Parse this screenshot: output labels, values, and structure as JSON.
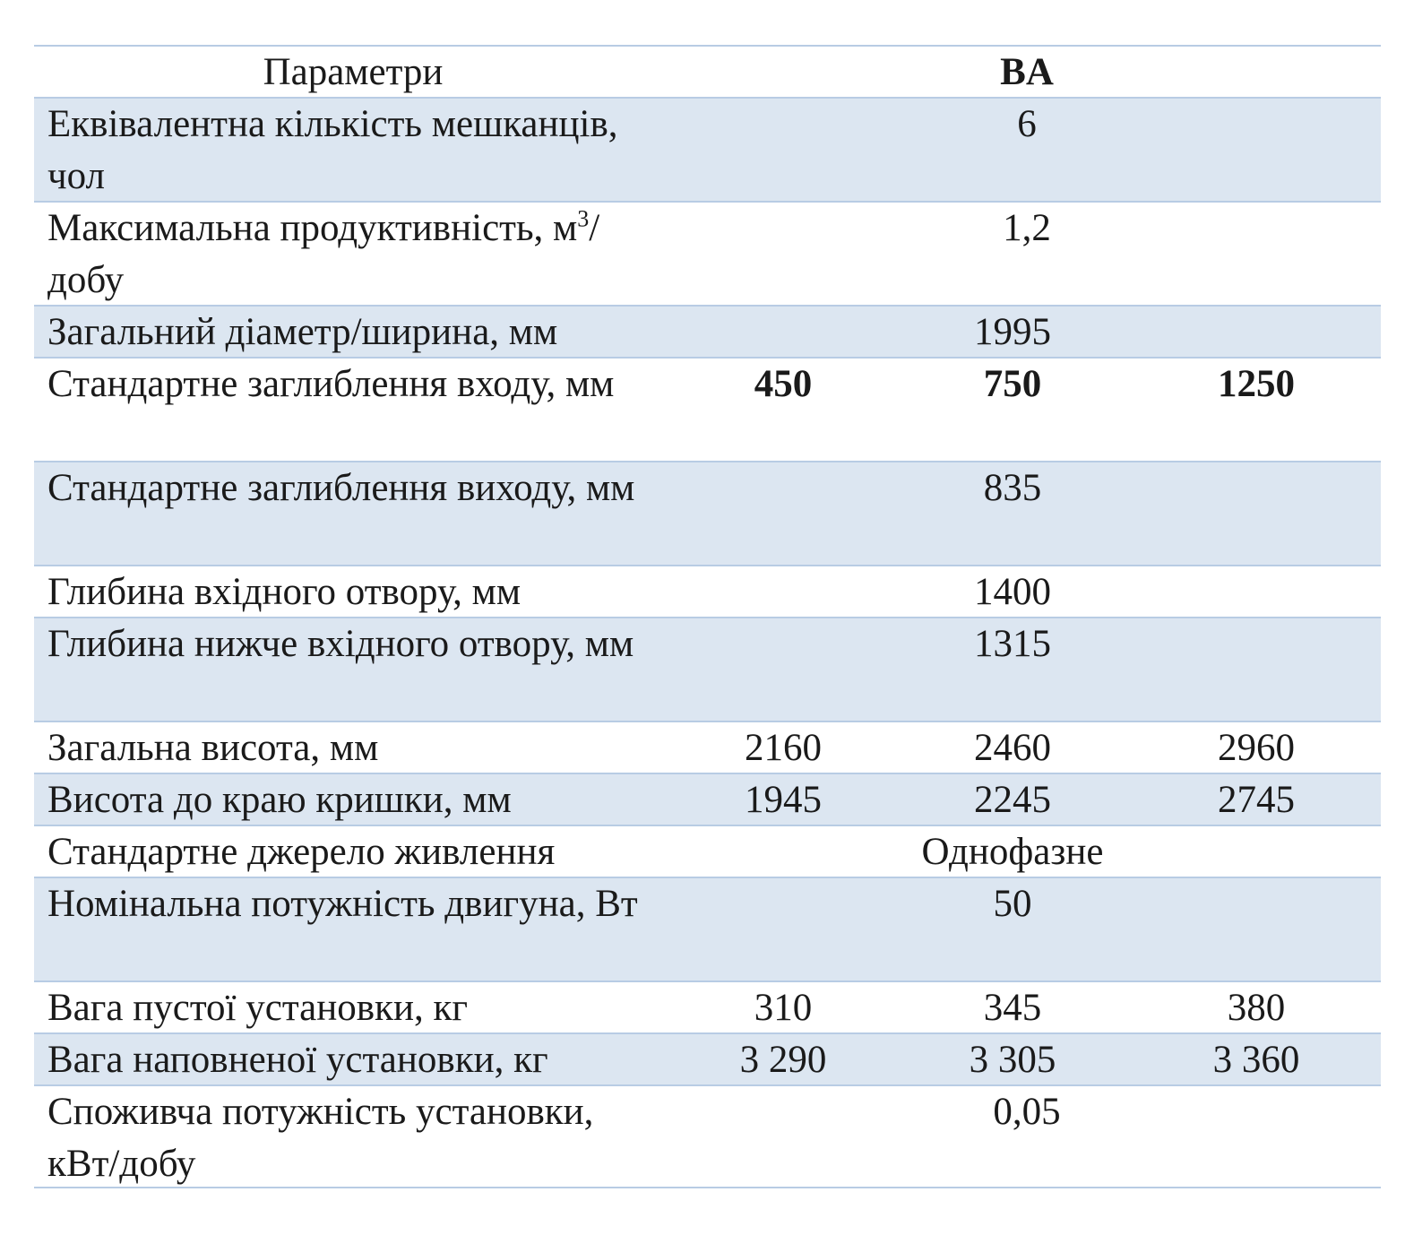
{
  "header": {
    "param": "Параметри",
    "model": "BA"
  },
  "rows": [
    {
      "label": "Еквівалентна кількість мешканців, чол",
      "value": "6"
    },
    {
      "label_pre": "Максимальна продуктивність, м",
      "label_sup": "3",
      "label_post": "/добу",
      "value": "1,2"
    },
    {
      "label": "Загальний діаметр/ширина, мм",
      "value": "1995"
    },
    {
      "label": "Стандартне заглиблення входу, мм",
      "values": [
        "450",
        "750",
        "1250"
      ]
    },
    {
      "label": "Стандартне заглиблення виходу, мм",
      "value": "835"
    },
    {
      "label": "Глибина вхідного отвору, мм",
      "value": "1400"
    },
    {
      "label": "Глибина нижче вхідного отвору, мм",
      "value": "1315"
    },
    {
      "label": "Загальна висота, мм",
      "values": [
        "2160",
        "2460",
        "2960"
      ]
    },
    {
      "label": "Висота до краю кришки, мм",
      "values": [
        "1945",
        "2245",
        "2745"
      ]
    },
    {
      "label": "Стандартне джерело живлення",
      "value": "Однофазне"
    },
    {
      "label": "Номінальна потужність двигуна, Вт",
      "value": "50"
    },
    {
      "label": "Вага пустої установки, кг",
      "values": [
        "310",
        "345",
        "380"
      ]
    },
    {
      "label": "Вага наповненої установки, кг",
      "values": [
        "3 290",
        "3 305",
        "3 360"
      ]
    },
    {
      "label": "Споживча потужність установки, кВт/добу",
      "value": "0,05"
    }
  ],
  "colors": {
    "shade": "#dce6f1",
    "rule": "#b8cce4"
  }
}
